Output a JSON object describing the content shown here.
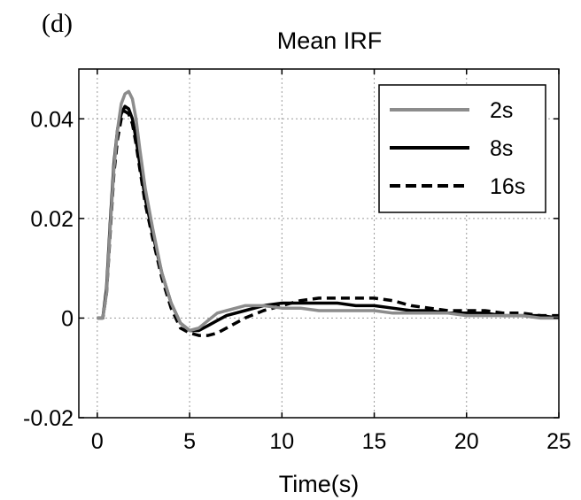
{
  "chart_data": {
    "type": "line",
    "panel_label": "(d)",
    "title": "Mean IRF",
    "xlabel": "Time(s)",
    "ylabel": "",
    "xlim": [
      -1,
      25
    ],
    "ylim": [
      -0.02,
      0.05
    ],
    "xticks": [
      0,
      5,
      10,
      15,
      20,
      25
    ],
    "xtick_labels": [
      "0",
      "5",
      "10",
      "15",
      "20",
      "25"
    ],
    "yticks": [
      -0.02,
      0,
      0.02,
      0.04
    ],
    "ytick_labels": [
      "-0.02",
      "0",
      "0.02",
      "0.04"
    ],
    "grid": true,
    "legend_position": "top-right",
    "series": [
      {
        "name": "2s",
        "color": "#8c8c8c",
        "style": "solid",
        "x": [
          0,
          0.3,
          0.5,
          0.7,
          0.9,
          1.1,
          1.3,
          1.5,
          1.7,
          1.9,
          2.1,
          2.3,
          2.6,
          3.0,
          3.5,
          4.0,
          4.5,
          5.0,
          5.5,
          6.0,
          6.5,
          7.0,
          8.0,
          9.0,
          10.0,
          11.0,
          12.0,
          13.0,
          14.0,
          15.0,
          16.0,
          17.0,
          18.0,
          19.0,
          20.0,
          21.0,
          22.0,
          23.0,
          24.0,
          25.0
        ],
        "y": [
          0,
          0,
          0.005,
          0.018,
          0.03,
          0.038,
          0.043,
          0.045,
          0.0455,
          0.044,
          0.04,
          0.034,
          0.026,
          0.018,
          0.009,
          0.003,
          -0.001,
          -0.0025,
          -0.002,
          -0.0005,
          0.001,
          0.0015,
          0.0025,
          0.0025,
          0.002,
          0.002,
          0.0015,
          0.0015,
          0.0015,
          0.0015,
          0.001,
          0.001,
          0.001,
          0.001,
          0.0005,
          0.0005,
          0.0005,
          0.0005,
          0,
          0
        ]
      },
      {
        "name": "8s",
        "color": "#000000",
        "style": "solid",
        "x": [
          0,
          0.3,
          0.5,
          0.7,
          0.9,
          1.1,
          1.3,
          1.5,
          1.7,
          1.9,
          2.1,
          2.3,
          2.6,
          3.0,
          3.5,
          4.0,
          4.5,
          5.0,
          5.5,
          6.0,
          6.5,
          7.0,
          8.0,
          9.0,
          10.0,
          11.0,
          12.0,
          13.0,
          14.0,
          15.0,
          16.0,
          17.0,
          18.0,
          19.0,
          20.0,
          21.0,
          22.0,
          23.0,
          24.0,
          25.0
        ],
        "y": [
          0,
          0,
          0.006,
          0.019,
          0.031,
          0.038,
          0.041,
          0.0425,
          0.042,
          0.04,
          0.036,
          0.031,
          0.024,
          0.017,
          0.009,
          0.003,
          -0.001,
          -0.0025,
          -0.0025,
          -0.0015,
          -0.0005,
          0.0005,
          0.0015,
          0.0025,
          0.003,
          0.003,
          0.003,
          0.003,
          0.0025,
          0.0025,
          0.002,
          0.0015,
          0.0015,
          0.001,
          0.001,
          0.001,
          0.0005,
          0.0005,
          0.0005,
          0
        ]
      },
      {
        "name": "16s",
        "color": "#000000",
        "style": "dashed",
        "x": [
          0,
          0.3,
          0.5,
          0.7,
          0.9,
          1.1,
          1.3,
          1.5,
          1.7,
          1.9,
          2.1,
          2.3,
          2.6,
          3.0,
          3.5,
          4.0,
          4.5,
          5.0,
          5.5,
          6.0,
          6.5,
          7.0,
          8.0,
          9.0,
          10.0,
          11.0,
          12.0,
          13.0,
          14.0,
          15.0,
          16.0,
          17.0,
          18.0,
          19.0,
          20.0,
          21.0,
          22.0,
          23.0,
          24.0,
          25.0
        ],
        "y": [
          0,
          0,
          0.005,
          0.017,
          0.029,
          0.036,
          0.04,
          0.0415,
          0.041,
          0.039,
          0.035,
          0.03,
          0.023,
          0.016,
          0.008,
          0.002,
          -0.002,
          -0.003,
          -0.0035,
          -0.0035,
          -0.003,
          -0.002,
          0,
          0.0015,
          0.0025,
          0.0035,
          0.004,
          0.004,
          0.004,
          0.004,
          0.0035,
          0.0025,
          0.002,
          0.0015,
          0.0015,
          0.0015,
          0.001,
          0.001,
          0.0005,
          0.0005
        ]
      }
    ]
  }
}
